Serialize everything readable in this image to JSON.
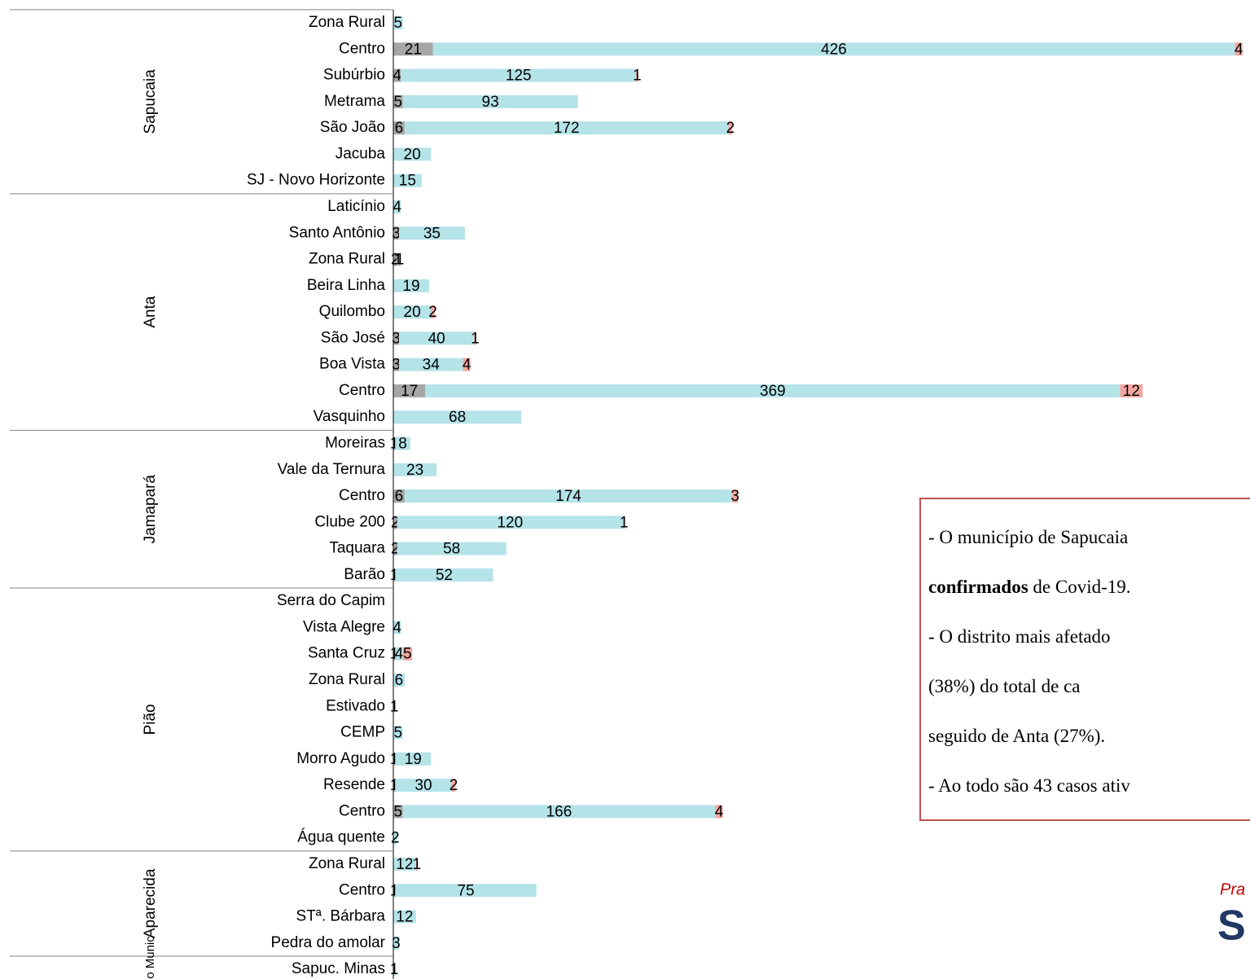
{
  "chart_data": {
    "type": "stacked-hbar",
    "categories": [
      "Zona Rural",
      "Centro",
      "Subúrbio",
      "Metrama",
      "São João ",
      "Jacuba",
      "SJ - Novo Horizonte",
      "Laticínio",
      "Santo Antônio",
      "Zona Rural",
      "Beira Linha",
      "Quilombo",
      "São José",
      "Boa Vista",
      "Centro",
      "Vasquinho",
      "Moreiras",
      "Vale da Ternura",
      "Centro",
      "Clube 200",
      "Taquara",
      "Barão",
      "Serra do Capim",
      "Vista Alegre",
      "Santa Cruz",
      "Zona Rural",
      "Estivado",
      "CEMP",
      "Morro Agudo",
      "Resende",
      "Centro",
      "Água quente",
      "Zona Rural",
      "Centro",
      "STª. Bárbara",
      "Pedra do amolar",
      "Sapuc. Minas"
    ],
    "groups": [
      {
        "name": "Sapucaia",
        "count": 7
      },
      {
        "name": "Anta",
        "count": 9
      },
      {
        "name": "Jamapará",
        "count": 6
      },
      {
        "name": "Pião",
        "count": 10
      },
      {
        "name": "Aparecida",
        "count": 4
      },
      {
        "name": "Outro Munic",
        "count": 1
      }
    ],
    "series": [
      {
        "color": "#a6a6a6",
        "values": [
          null,
          21,
          4,
          5,
          6,
          null,
          null,
          null,
          3,
          2,
          null,
          null,
          3,
          3,
          17,
          null,
          1,
          null,
          6,
          2,
          2,
          1,
          null,
          null,
          1,
          null,
          null,
          null,
          1,
          1,
          5,
          null,
          null,
          1,
          null,
          null,
          null
        ]
      },
      {
        "color": "#b4e3e8",
        "values": [
          5,
          426,
          125,
          93,
          172,
          20,
          15,
          4,
          35,
          1,
          19,
          20,
          40,
          34,
          369,
          68,
          8,
          23,
          174,
          120,
          58,
          52,
          null,
          4,
          4,
          6,
          1,
          5,
          19,
          30,
          166,
          2,
          12,
          75,
          12,
          3,
          1
        ]
      },
      {
        "color": "#f4a6a0",
        "values": [
          null,
          4,
          1,
          null,
          2,
          null,
          null,
          null,
          null,
          1,
          null,
          2,
          1,
          4,
          12,
          null,
          null,
          null,
          3,
          1,
          null,
          null,
          null,
          null,
          5,
          null,
          null,
          null,
          null,
          2,
          4,
          null,
          1,
          null,
          null,
          null,
          null
        ]
      }
    ],
    "xlim": [
      0,
      455
    ]
  },
  "note_box": {
    "lines": [
      [
        {
          "text": "- O município de Sapucaia"
        }
      ],
      [
        {
          "text": "confirmados",
          "bold": true
        },
        {
          "text": " de Covid-19."
        }
      ],
      [
        {
          "text": "- O distrito mais afetado"
        }
      ],
      [
        {
          "text": "(38%) do total de ca"
        }
      ],
      [
        {
          "text": "seguido de Anta (27%)."
        }
      ],
      [
        {
          "text": "- Ao todo são 43 casos ativ"
        }
      ]
    ]
  },
  "logo": {
    "top": "Pra",
    "letter": "S"
  }
}
